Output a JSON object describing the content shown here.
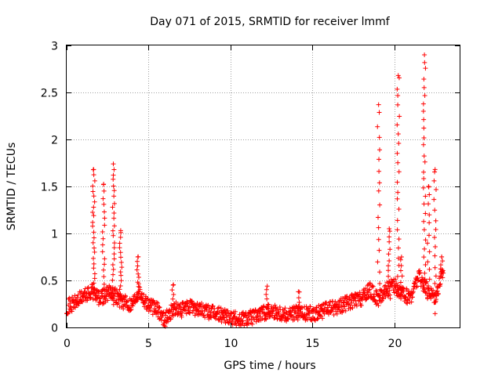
{
  "chart_data": {
    "type": "scatter",
    "title": "Day 071 of 2015, SRMTID for receiver lmmf",
    "xlabel": "GPS time / hours",
    "ylabel": "SRMTID / TECUs",
    "xlim": [
      0,
      24
    ],
    "ylim": [
      0,
      3
    ],
    "x_ticks": [
      0,
      5,
      10,
      15,
      20
    ],
    "x_tick_labels": [
      "0",
      "5",
      "10",
      "15",
      "20"
    ],
    "y_ticks": [
      0,
      0.5,
      1,
      1.5,
      2,
      2.5,
      3
    ],
    "y_tick_labels": [
      "0",
      "0.5",
      "1",
      "1.5",
      "2",
      "2.5",
      "3"
    ],
    "grid": true,
    "marker": "+",
    "marker_color": "#ff0000",
    "series": [
      {
        "name": "SRMTID",
        "profile": [
          [
            0.0,
            0.22
          ],
          [
            0.5,
            0.26
          ],
          [
            1.0,
            0.33
          ],
          [
            1.4,
            0.36
          ],
          [
            1.6,
            0.42
          ],
          [
            2.0,
            0.3
          ],
          [
            2.4,
            0.35
          ],
          [
            2.8,
            0.38
          ],
          [
            3.2,
            0.3
          ],
          [
            3.6,
            0.26
          ],
          [
            4.0,
            0.25
          ],
          [
            4.4,
            0.4
          ],
          [
            4.8,
            0.28
          ],
          [
            5.2,
            0.22
          ],
          [
            5.6,
            0.18
          ],
          [
            6.0,
            0.08
          ],
          [
            6.5,
            0.2
          ],
          [
            7.0,
            0.18
          ],
          [
            7.5,
            0.22
          ],
          [
            8.0,
            0.2
          ],
          [
            8.5,
            0.17
          ],
          [
            9.0,
            0.15
          ],
          [
            9.5,
            0.13
          ],
          [
            10.0,
            0.12
          ],
          [
            10.5,
            0.08
          ],
          [
            11.0,
            0.1
          ],
          [
            11.5,
            0.12
          ],
          [
            12.0,
            0.15
          ],
          [
            12.5,
            0.18
          ],
          [
            13.0,
            0.16
          ],
          [
            13.5,
            0.14
          ],
          [
            14.0,
            0.16
          ],
          [
            14.5,
            0.14
          ],
          [
            15.0,
            0.15
          ],
          [
            15.5,
            0.16
          ],
          [
            16.0,
            0.2
          ],
          [
            16.5,
            0.22
          ],
          [
            17.0,
            0.25
          ],
          [
            17.5,
            0.28
          ],
          [
            18.0,
            0.3
          ],
          [
            18.5,
            0.4
          ],
          [
            19.0,
            0.3
          ],
          [
            19.5,
            0.4
          ],
          [
            20.0,
            0.45
          ],
          [
            20.5,
            0.35
          ],
          [
            21.0,
            0.32
          ],
          [
            21.5,
            0.55
          ],
          [
            22.0,
            0.4
          ],
          [
            22.5,
            0.33
          ],
          [
            23.0,
            0.6
          ]
        ],
        "spikes": [
          {
            "x": 1.65,
            "peak": 1.68,
            "min": 0.3,
            "step": 0.055
          },
          {
            "x": 2.25,
            "peak": 1.52,
            "min": 0.25,
            "step": 0.07
          },
          {
            "x": 2.85,
            "peak": 1.74,
            "min": 0.25,
            "step": 0.06
          },
          {
            "x": 3.3,
            "peak": 1.03,
            "min": 0.3,
            "step": 0.05
          },
          {
            "x": 4.35,
            "peak": 0.75,
            "min": 0.3,
            "step": 0.045
          },
          {
            "x": 6.5,
            "peak": 0.45,
            "min": 0.2,
            "step": 0.05
          },
          {
            "x": 12.25,
            "peak": 0.44,
            "min": 0.15,
            "step": 0.05
          },
          {
            "x": 14.15,
            "peak": 0.38,
            "min": 0.12,
            "step": 0.05
          },
          {
            "x": 19.05,
            "peak": 2.37,
            "min": 0.35,
            "step": 0.12
          },
          {
            "x": 19.7,
            "peak": 1.05,
            "min": 0.3,
            "step": 0.06
          },
          {
            "x": 20.25,
            "peak": 2.68,
            "min": 0.35,
            "step": 0.1
          },
          {
            "x": 20.45,
            "peak": 0.75,
            "min": 0.3,
            "step": 0.06
          },
          {
            "x": 21.85,
            "peak": 2.9,
            "min": 0.4,
            "step": 0.09
          },
          {
            "x": 22.1,
            "peak": 1.5,
            "min": 0.3,
            "step": 0.1
          },
          {
            "x": 22.5,
            "peak": 1.68,
            "min": 0.15,
            "step": 0.1
          },
          {
            "x": 22.9,
            "peak": 0.75,
            "min": 0.55,
            "step": 0.04
          }
        ]
      }
    ]
  }
}
